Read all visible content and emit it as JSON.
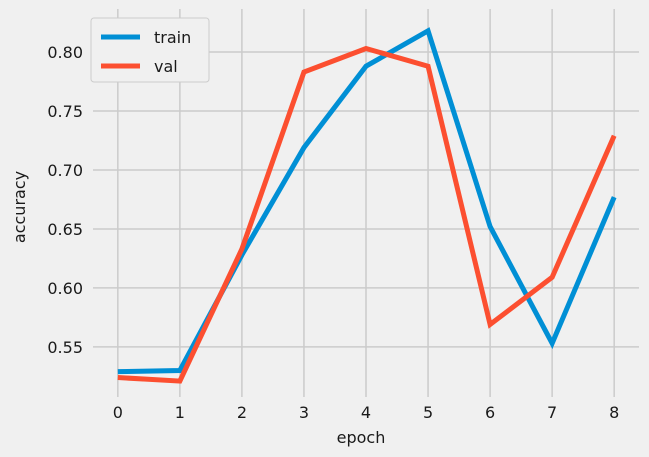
{
  "chart_data": {
    "type": "line",
    "xlabel": "epoch",
    "ylabel": "accuracy",
    "x": [
      0,
      1,
      2,
      3,
      4,
      5,
      6,
      7,
      8
    ],
    "xlim": [
      -0.4,
      8.4
    ],
    "ylim": [
      0.5075,
      0.8365
    ],
    "xticks": [
      0,
      1,
      2,
      3,
      4,
      5,
      6,
      7,
      8
    ],
    "yticks": [
      0.55,
      0.6,
      0.65,
      0.7,
      0.75,
      0.8
    ],
    "ytick_labels": [
      "0.55",
      "0.60",
      "0.65",
      "0.70",
      "0.75",
      "0.80"
    ],
    "grid": true,
    "legend": "upper-left",
    "series": [
      {
        "name": "train",
        "color": "#008fd5",
        "values": [
          0.529,
          0.53,
          0.628,
          0.719,
          0.788,
          0.818,
          0.652,
          0.553,
          0.677
        ]
      },
      {
        "name": "val",
        "color": "#fc4f30",
        "values": [
          0.524,
          0.521,
          0.633,
          0.783,
          0.803,
          0.788,
          0.569,
          0.609,
          0.729
        ]
      }
    ]
  }
}
